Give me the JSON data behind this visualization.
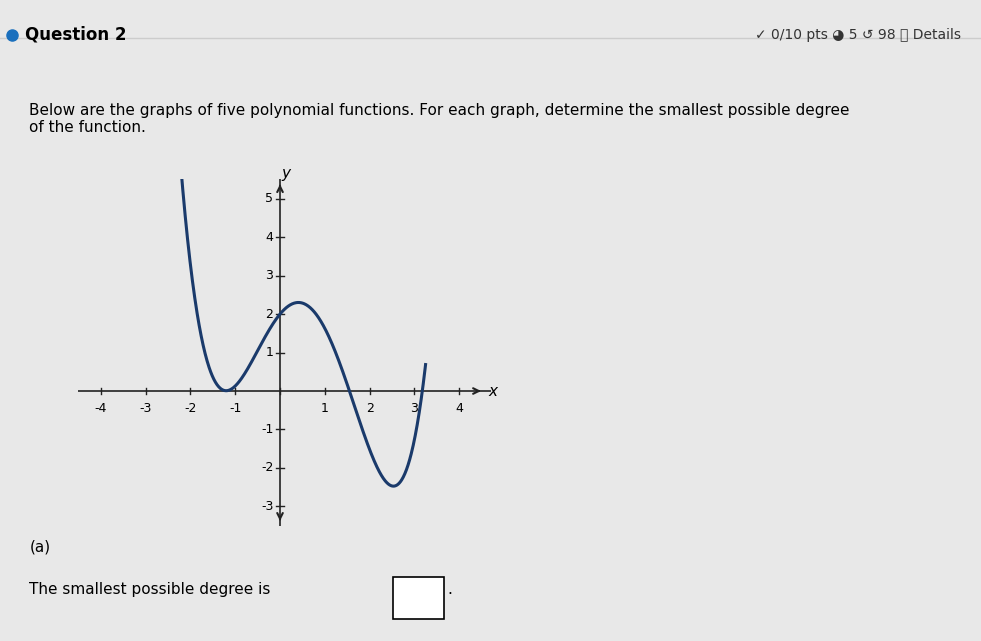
{
  "title_text": "Question 2",
  "header_right": "✓ 0/10 pts ◕ 5 ↺ 98 ⓘ Details",
  "description": "Below are the graphs of five polynomial functions. For each graph, determine the smallest possible degree\nof the function.",
  "part_label": "(a)",
  "answer_label": "The smallest possible degree is",
  "background_color": "#f0f0f0",
  "plot_bg_color": "#e8e8e8",
  "curve_color": "#1a3a6b",
  "axis_color": "#222222",
  "curve_linewidth": 2.2,
  "xlim": [
    -4.5,
    4.7
  ],
  "ylim": [
    -3.5,
    5.5
  ],
  "xticks": [
    -4,
    -3,
    -2,
    -1,
    0,
    1,
    2,
    3,
    4
  ],
  "yticks": [
    -3,
    -2,
    -1,
    1,
    2,
    3,
    4,
    5
  ],
  "xlabel": "x",
  "ylabel": "y"
}
